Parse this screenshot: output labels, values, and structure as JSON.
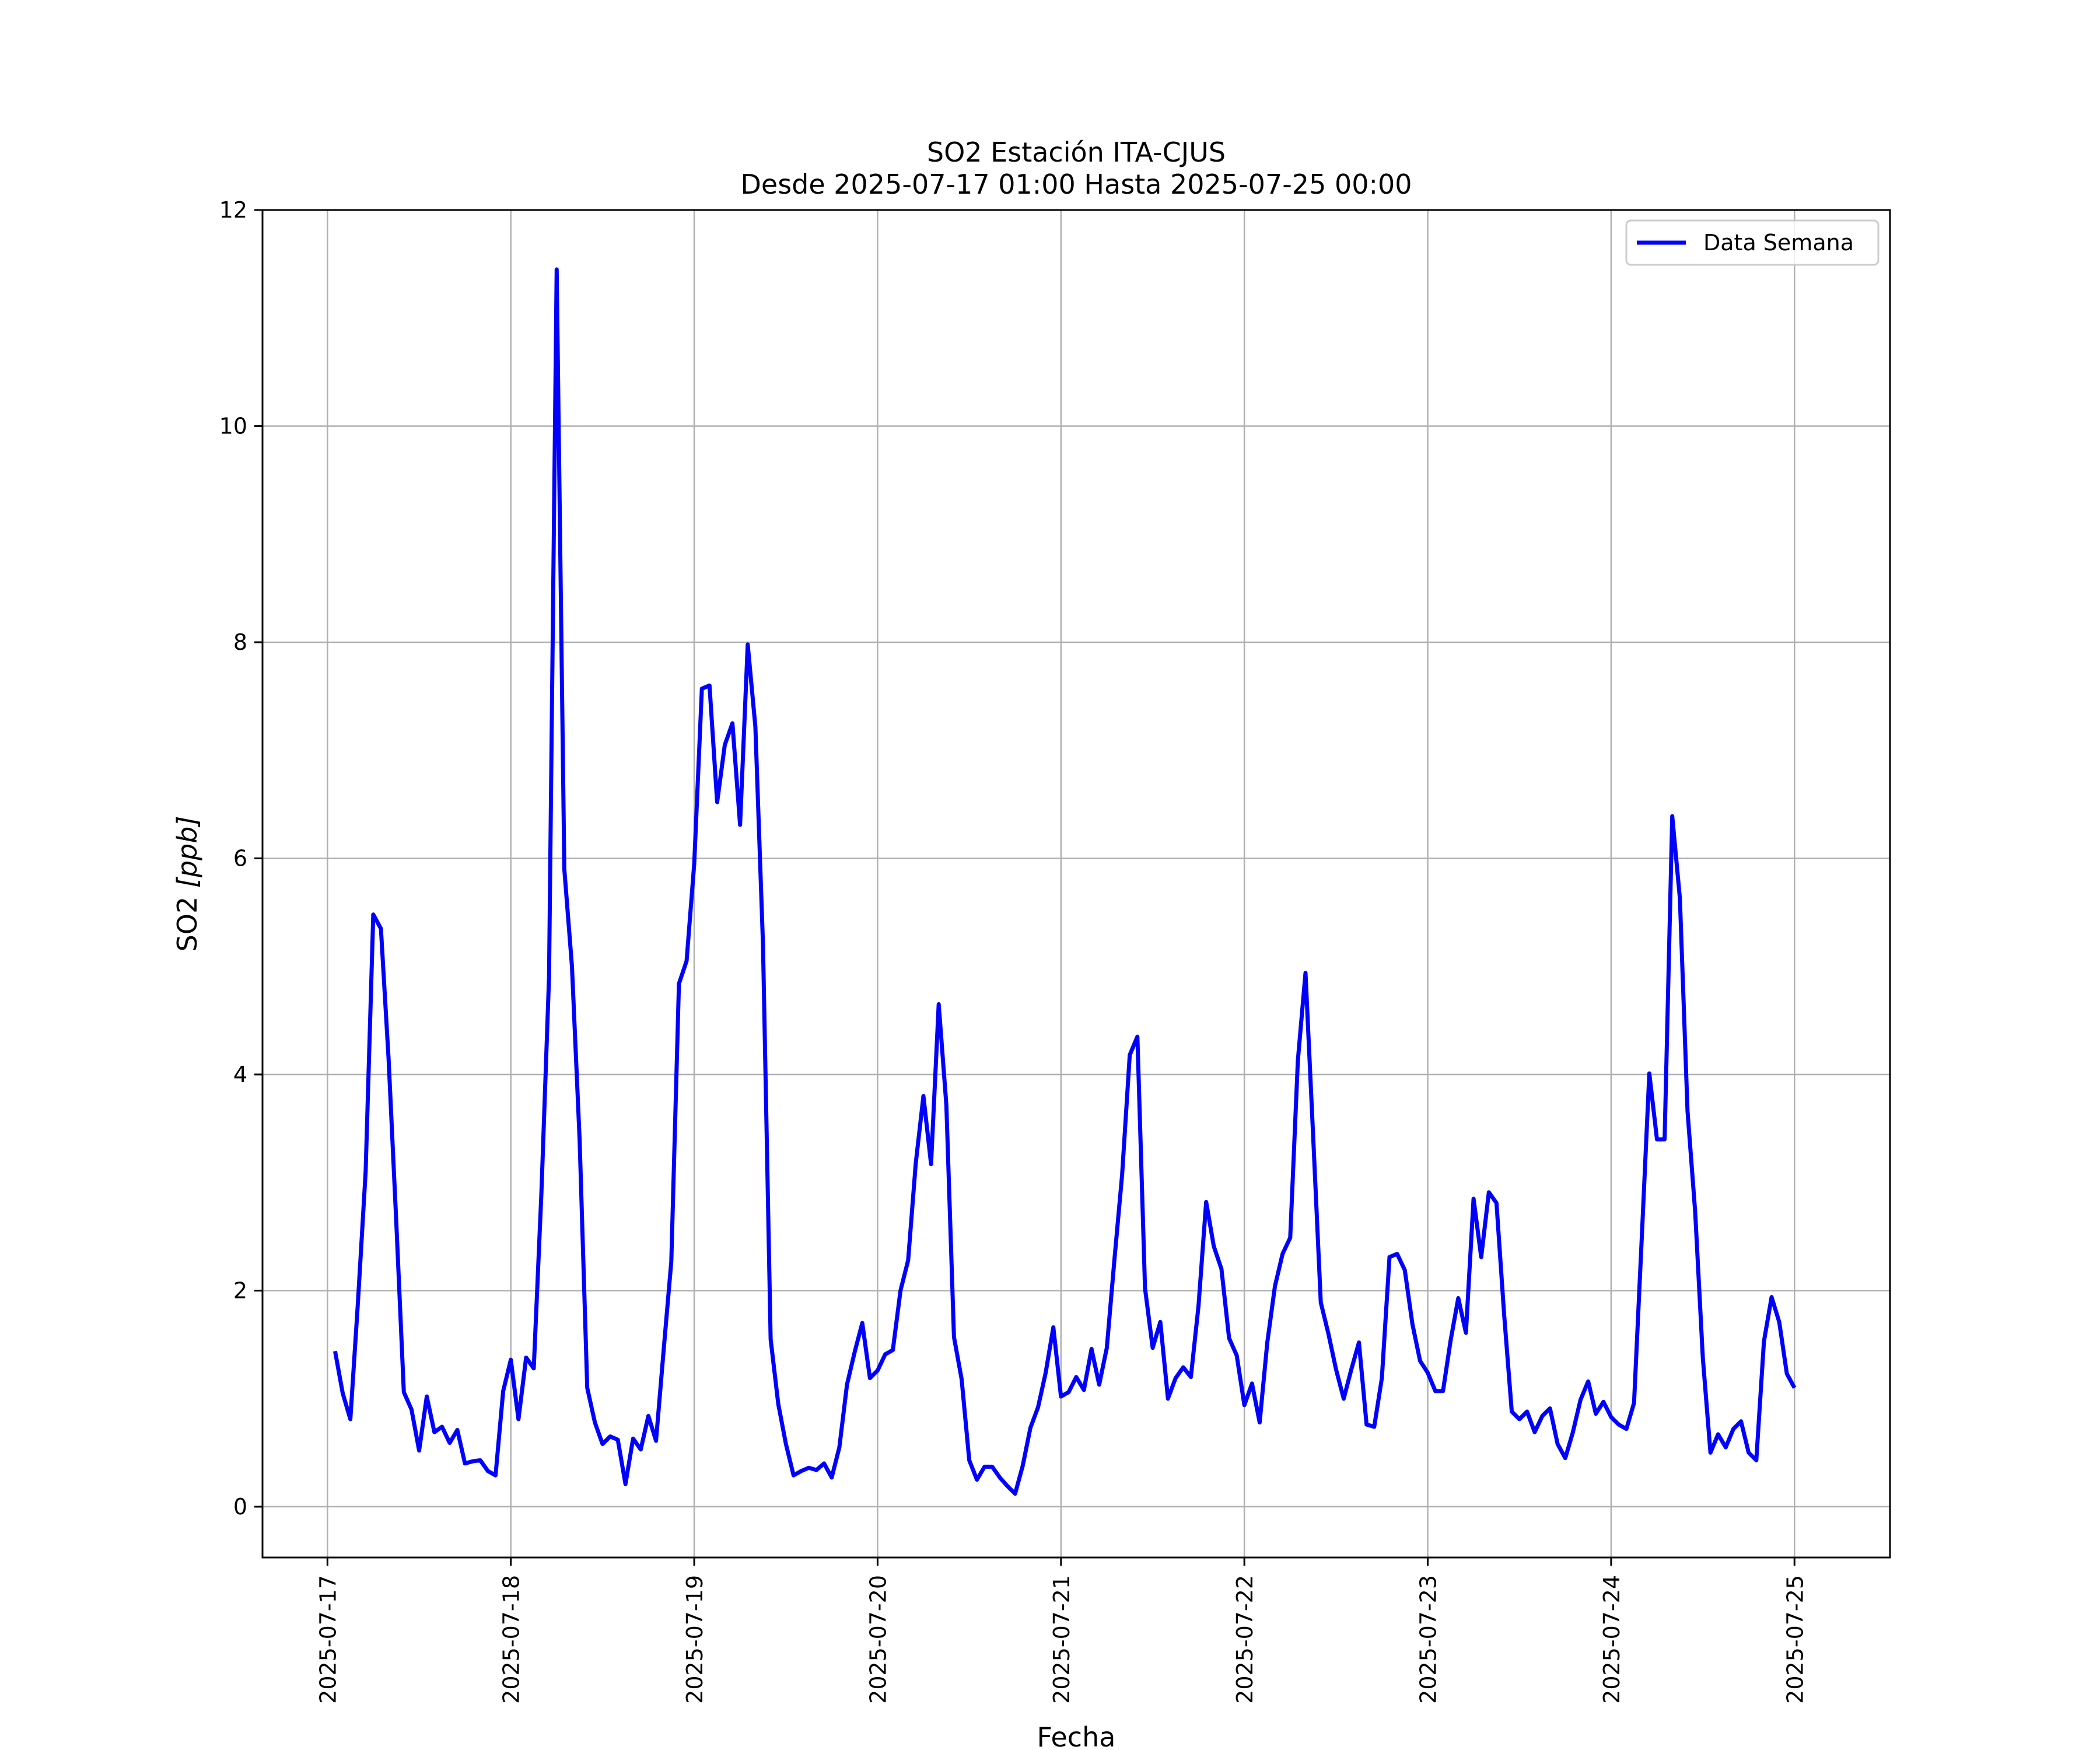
{
  "chart_data": {
    "type": "line",
    "title_line1": "SO2 Estación ITA-CJUS",
    "title_line2": "Desde 2025-07-17 01:00 Hasta 2025-07-25 00:00",
    "xlabel": "Fecha",
    "ylabel_prefix": "SO2 ",
    "ylabel_unit": "[ppb]",
    "xlim": [
      "2025-07-16 15:30",
      "2025-07-25 12:30"
    ],
    "ylim": [
      -0.47,
      12.0
    ],
    "x_ticks": [
      "2025-07-17",
      "2025-07-18",
      "2025-07-19",
      "2025-07-20",
      "2025-07-21",
      "2025-07-22",
      "2025-07-23",
      "2025-07-24",
      "2025-07-25"
    ],
    "y_ticks": [
      0,
      2,
      4,
      6,
      8,
      10,
      12
    ],
    "grid": true,
    "legend_position": "top-right",
    "series": [
      {
        "name": "Data Semana",
        "color": "#0000ff",
        "x_start": "2025-07-17 01:00",
        "x_step_hours": 1,
        "values": [
          1.44,
          1.05,
          0.81,
          1.9,
          3.1,
          5.48,
          5.35,
          4.15,
          2.65,
          1.06,
          0.9,
          0.52,
          1.02,
          0.69,
          0.74,
          0.59,
          0.71,
          0.4,
          0.42,
          0.43,
          0.33,
          0.29,
          1.07,
          1.36,
          0.81,
          1.38,
          1.28,
          2.9,
          4.9,
          11.45,
          5.9,
          5.0,
          3.4,
          1.1,
          0.78,
          0.58,
          0.65,
          0.62,
          0.21,
          0.63,
          0.53,
          0.84,
          0.61,
          1.45,
          2.27,
          4.84,
          5.05,
          5.95,
          7.57,
          7.6,
          6.52,
          7.05,
          7.25,
          6.31,
          7.98,
          7.22,
          5.2,
          1.55,
          0.95,
          0.58,
          0.29,
          0.33,
          0.36,
          0.34,
          0.4,
          0.27,
          0.55,
          1.13,
          1.43,
          1.7,
          1.19,
          1.26,
          1.41,
          1.45,
          2.0,
          2.28,
          3.18,
          3.8,
          3.17,
          4.65,
          3.72,
          1.57,
          1.18,
          0.43,
          0.25,
          0.37,
          0.37,
          0.27,
          0.19,
          0.12,
          0.38,
          0.73,
          0.92,
          1.24,
          1.66,
          1.02,
          1.06,
          1.2,
          1.08,
          1.46,
          1.13,
          1.47,
          2.29,
          3.07,
          4.18,
          4.35,
          2.02,
          1.47,
          1.71,
          1.0,
          1.19,
          1.29,
          1.2,
          1.86,
          2.82,
          2.41,
          2.2,
          1.56,
          1.4,
          0.94,
          1.14,
          0.78,
          1.52,
          2.04,
          2.34,
          2.49,
          4.13,
          4.94,
          3.43,
          1.89,
          1.6,
          1.27,
          1.0,
          1.27,
          1.52,
          0.76,
          0.74,
          1.19,
          2.31,
          2.34,
          2.19,
          1.69,
          1.35,
          1.24,
          1.07,
          1.07,
          1.54,
          1.93,
          1.61,
          2.85,
          2.31,
          2.91,
          2.81,
          1.78,
          0.88,
          0.81,
          0.88,
          0.69,
          0.84,
          0.91,
          0.58,
          0.45,
          0.69,
          0.99,
          1.16,
          0.86,
          0.97,
          0.83,
          0.76,
          0.72,
          0.96,
          2.47,
          4.01,
          3.4,
          3.4,
          6.39,
          5.63,
          3.66,
          2.73,
          1.38,
          0.5,
          0.67,
          0.55,
          0.72,
          0.79,
          0.5,
          0.43,
          1.53,
          1.94,
          1.71,
          1.23,
          1.1
        ]
      }
    ]
  }
}
